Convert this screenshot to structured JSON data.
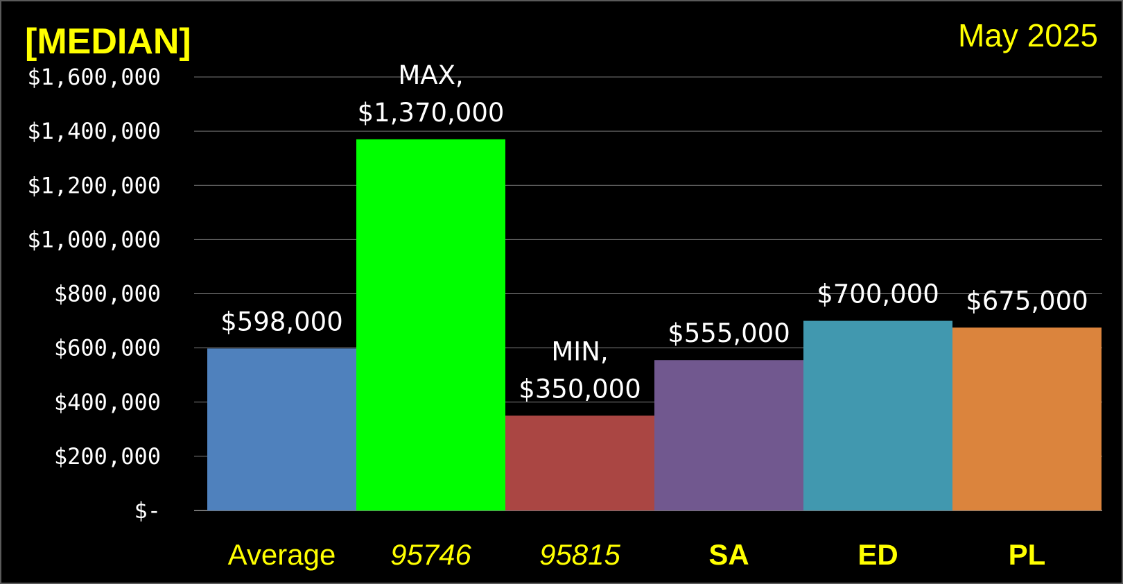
{
  "title_left": "[MEDIAN]",
  "title_right": "May 2025",
  "chart_data": {
    "type": "bar",
    "categories": [
      "Average",
      "95746",
      "95815",
      "SA",
      "ED",
      "PL"
    ],
    "category_styles": [
      "normal",
      "italic",
      "italic",
      "bold",
      "bold",
      "bold"
    ],
    "values": [
      598000,
      1370000,
      350000,
      555000,
      700000,
      675000
    ],
    "data_labels": [
      [
        "$598,000"
      ],
      [
        "MAX,",
        "$1,370,000"
      ],
      [
        "MIN,",
        "$350,000"
      ],
      [
        "$555,000"
      ],
      [
        "$700,000"
      ],
      [
        "$675,000"
      ]
    ],
    "colors": [
      "#4f81bd",
      "#00ff00",
      "#aa4643",
      "#71588f",
      "#4198af",
      "#db843d"
    ],
    "ylim": [
      0,
      1600000
    ],
    "yticks": [
      0,
      200000,
      400000,
      600000,
      800000,
      1000000,
      1200000,
      1400000,
      1600000
    ],
    "ytick_labels": [
      "$-",
      "$200,000",
      "$400,000",
      "$600,000",
      "$800,000",
      "$1,000,000",
      "$1,200,000",
      "$1,400,000",
      "$1,600,000"
    ],
    "grid": true,
    "legend": "none",
    "text_color": "#ffffff",
    "category_label_color": "#ffff00",
    "background": "#000000"
  }
}
